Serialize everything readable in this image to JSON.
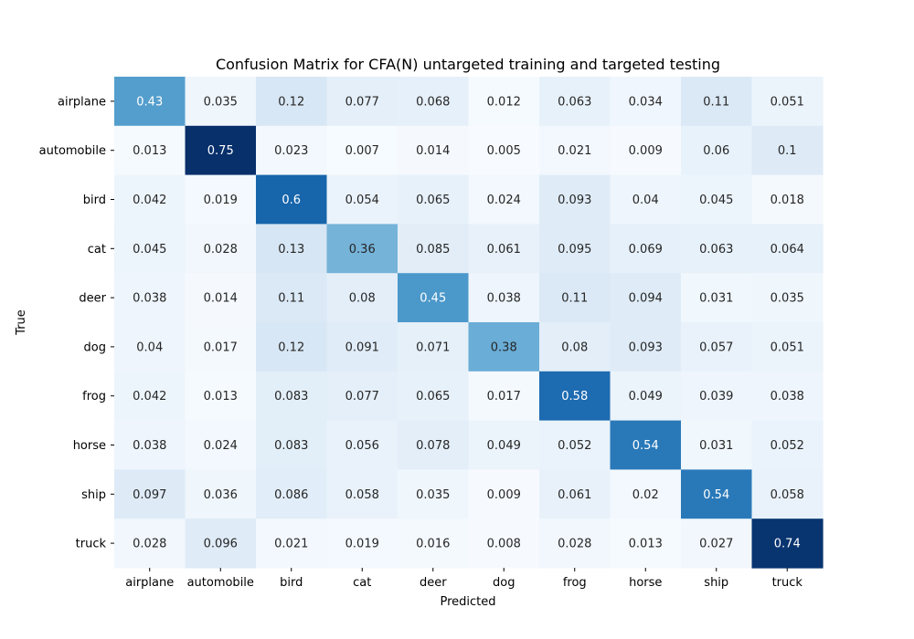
{
  "chart_data": {
    "type": "heatmap",
    "title": "Confusion Matrix for CFA(N) untargeted training and targeted testing",
    "xlabel": "Predicted",
    "ylabel": "True",
    "x_categories": [
      "airplane",
      "automobile",
      "bird",
      "cat",
      "deer",
      "dog",
      "frog",
      "horse",
      "ship",
      "truck"
    ],
    "y_categories": [
      "airplane",
      "automobile",
      "bird",
      "cat",
      "deer",
      "dog",
      "frog",
      "horse",
      "ship",
      "truck"
    ],
    "values": [
      [
        "0.43",
        "0.035",
        "0.12",
        "0.077",
        "0.068",
        "0.012",
        "0.063",
        "0.034",
        "0.11",
        "0.051"
      ],
      [
        "0.013",
        "0.75",
        "0.023",
        "0.007",
        "0.014",
        "0.005",
        "0.021",
        "0.009",
        "0.06",
        "0.1"
      ],
      [
        "0.042",
        "0.019",
        "0.6",
        "0.054",
        "0.065",
        "0.024",
        "0.093",
        "0.04",
        "0.045",
        "0.018"
      ],
      [
        "0.045",
        "0.028",
        "0.13",
        "0.36",
        "0.085",
        "0.061",
        "0.095",
        "0.069",
        "0.063",
        "0.064"
      ],
      [
        "0.038",
        "0.014",
        "0.11",
        "0.08",
        "0.45",
        "0.038",
        "0.11",
        "0.094",
        "0.031",
        "0.035"
      ],
      [
        "0.04",
        "0.017",
        "0.12",
        "0.091",
        "0.071",
        "0.38",
        "0.08",
        "0.093",
        "0.057",
        "0.051"
      ],
      [
        "0.042",
        "0.013",
        "0.083",
        "0.077",
        "0.065",
        "0.017",
        "0.58",
        "0.049",
        "0.039",
        "0.038"
      ],
      [
        "0.038",
        "0.024",
        "0.083",
        "0.056",
        "0.078",
        "0.049",
        "0.052",
        "0.54",
        "0.031",
        "0.052"
      ],
      [
        "0.097",
        "0.036",
        "0.086",
        "0.058",
        "0.035",
        "0.009",
        "0.061",
        "0.02",
        "0.54",
        "0.058"
      ],
      [
        "0.028",
        "0.096",
        "0.021",
        "0.019",
        "0.016",
        "0.008",
        "0.028",
        "0.013",
        "0.027",
        "0.74"
      ]
    ],
    "colormap": "Blues",
    "vmin": 0.005,
    "vmax": 0.75,
    "colorbar": false,
    "grid": false
  }
}
